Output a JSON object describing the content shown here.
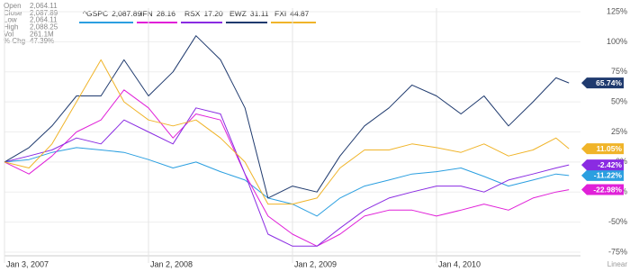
{
  "chart_data": {
    "type": "line",
    "info": [
      {
        "label": "Open",
        "value": "2,064.11"
      },
      {
        "label": "Close",
        "value": "2,087.89"
      },
      {
        "label": "Low",
        "value": "2,064.11"
      },
      {
        "label": "High",
        "value": "2,088.25"
      },
      {
        "label": "Vol",
        "value": "261.1M"
      },
      {
        "label": "% Chg",
        "value": "47.39%"
      }
    ],
    "x": [
      2007,
      2007.17,
      2007.33,
      2007.5,
      2007.67,
      2007.83,
      2008,
      2008.17,
      2008.33,
      2008.5,
      2008.67,
      2008.83,
      2009,
      2009.17,
      2009.33,
      2009.5,
      2009.67,
      2009.83,
      2010,
      2010.17,
      2010.33,
      2010.5,
      2010.67,
      2010.83,
      2010.92
    ],
    "xlim": [
      2007,
      2011
    ],
    "xticks": [
      {
        "value": 2007,
        "label": "Jan 3, 2007"
      },
      {
        "value": 2008,
        "label": "Jan 2, 2008"
      },
      {
        "value": 2009,
        "label": "Jan 2, 2009"
      },
      {
        "value": 2010,
        "label": "Jan 4, 2010"
      }
    ],
    "x_scale_label": "Linear",
    "ylim": [
      -78,
      128
    ],
    "yticks": [
      {
        "value": 125,
        "label": "125%"
      },
      {
        "value": 100,
        "label": "100%"
      },
      {
        "value": 75,
        "label": "75%"
      },
      {
        "value": 50,
        "label": "50%"
      },
      {
        "value": 25,
        "label": "25%"
      },
      {
        "value": 0,
        "label": "0%"
      },
      {
        "value": -25,
        "label": "-25%"
      },
      {
        "value": -50,
        "label": "-50%"
      },
      {
        "value": -75,
        "label": "-75%"
      }
    ],
    "grid": true,
    "series": [
      {
        "name": "^GSPC",
        "legend_value": "2,087.89",
        "color": "#2b9fe0",
        "end_label": "-11.22%",
        "values": [
          0,
          2,
          8,
          12,
          10,
          8,
          2,
          -5,
          0,
          -8,
          -15,
          -30,
          -35,
          -45,
          -30,
          -20,
          -15,
          -10,
          -8,
          -5,
          -12,
          -20,
          -15,
          -10,
          -11.22
        ]
      },
      {
        "name": "IFN",
        "legend_value": "28.16",
        "color": "#e020d8",
        "end_label": "-22.98%",
        "values": [
          0,
          -10,
          5,
          25,
          35,
          60,
          45,
          20,
          40,
          35,
          -10,
          -45,
          -60,
          -70,
          -60,
          -45,
          -40,
          -40,
          -45,
          -40,
          -35,
          -40,
          -30,
          -25,
          -22.98
        ]
      },
      {
        "name": "RSX",
        "legend_value": "17.20",
        "color": "#8a2be2",
        "end_label": "-2.42%",
        "values": [
          0,
          5,
          10,
          20,
          15,
          35,
          25,
          15,
          45,
          40,
          -10,
          -60,
          -70,
          -70,
          -55,
          -40,
          -30,
          -25,
          -20,
          -20,
          -25,
          -15,
          -10,
          -5,
          -2.42
        ]
      },
      {
        "name": "EWZ",
        "legend_value": "31.11",
        "color": "#1f3a6e",
        "end_label": "65.74%",
        "values": [
          0,
          12,
          30,
          55,
          55,
          85,
          55,
          75,
          105,
          85,
          45,
          -30,
          -20,
          -25,
          5,
          30,
          45,
          64,
          55,
          40,
          55,
          30,
          50,
          70,
          65.74
        ]
      },
      {
        "name": "FXI",
        "legend_value": "44.87",
        "color": "#f0b429",
        "end_label": "11.05%",
        "values": [
          0,
          -5,
          15,
          50,
          85,
          50,
          35,
          30,
          35,
          20,
          0,
          -35,
          -35,
          -30,
          -5,
          10,
          10,
          15,
          12,
          8,
          15,
          5,
          10,
          20,
          11.05
        ]
      }
    ]
  }
}
